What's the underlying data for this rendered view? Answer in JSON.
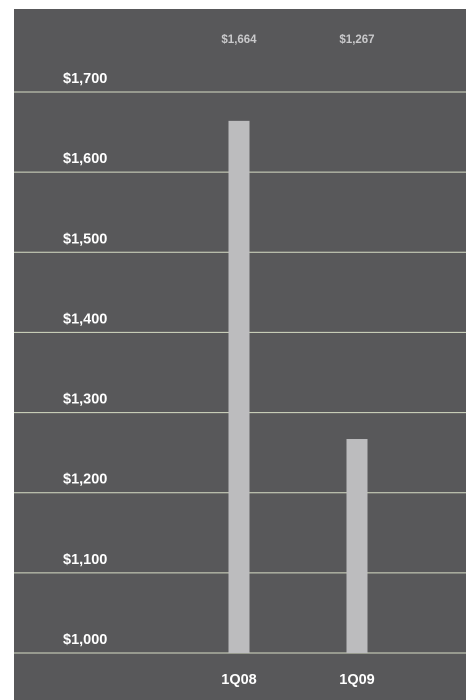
{
  "chart_data": {
    "type": "bar",
    "categories": [
      "1Q08",
      "1Q09"
    ],
    "values": [
      1664,
      1267
    ],
    "value_labels": [
      "$1,664",
      "$1,267"
    ],
    "title": "",
    "xlabel": "",
    "ylabel": "",
    "ylim": [
      1000,
      1700
    ],
    "yticks": [
      1000,
      1100,
      1200,
      1300,
      1400,
      1500,
      1600,
      1700
    ],
    "ytick_labels": [
      "$1,000",
      "$1,100",
      "$1,200",
      "$1,300",
      "$1,400",
      "$1,500",
      "$1,600",
      "$1,700"
    ],
    "grid": true,
    "legend": "none",
    "colors": {
      "background": "#58585a",
      "bar": "#bcbcbe",
      "gridline": "#d6dcc4",
      "tick_text": "#ffffff",
      "value_text": "#c9c9cb"
    }
  }
}
